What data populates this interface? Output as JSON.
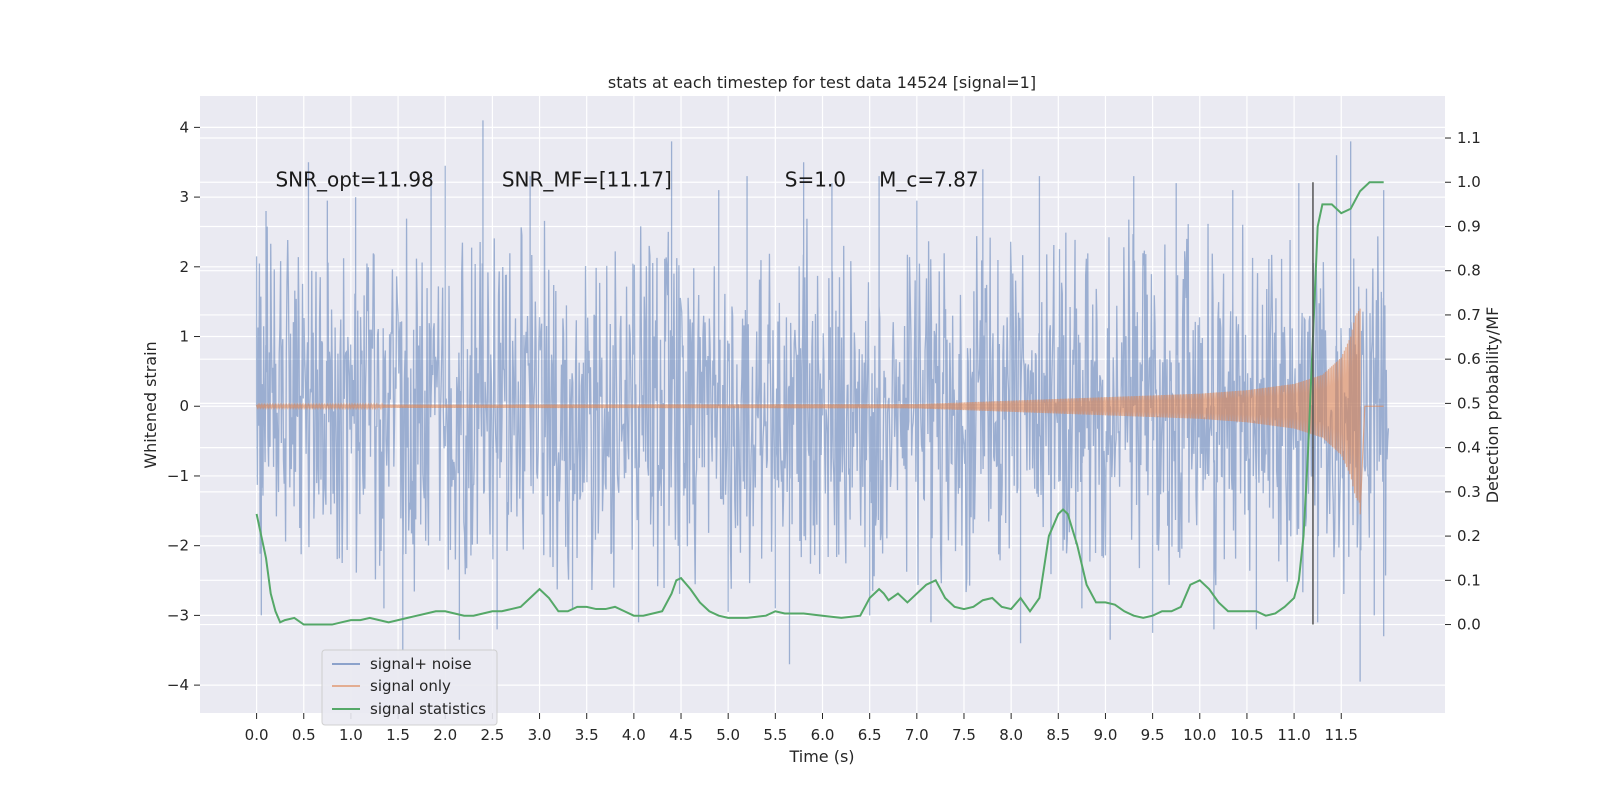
{
  "chart_data": {
    "type": "line",
    "title": "stats at each timestep for test data 14524 [signal=1]",
    "xlabel": "Time (s)",
    "ylabel": "Whitened strain",
    "ylabel_right": "Detection probability/MF",
    "xlim": [
      -0.6,
      12.6
    ],
    "ylim": [
      -4.4,
      4.45
    ],
    "ylim_right": [
      -0.2,
      1.195
    ],
    "x_ticks": [
      0.0,
      0.5,
      1.0,
      1.5,
      2.0,
      2.5,
      3.0,
      3.5,
      4.0,
      4.5,
      5.0,
      5.5,
      6.0,
      6.5,
      7.0,
      7.5,
      8.0,
      8.5,
      9.0,
      9.5,
      10.0,
      10.5,
      11.0,
      11.5
    ],
    "x_tick_labels": [
      "0.0",
      "0.5",
      "1.0",
      "1.5",
      "2.0",
      "2.5",
      "3.0",
      "3.5",
      "4.0",
      "4.5",
      "5.0",
      "5.5",
      "6.0",
      "6.5",
      "7.0",
      "7.5",
      "8.0",
      "8.5",
      "9.0",
      "9.5",
      "10.0",
      "10.5",
      "11.0",
      "11.5"
    ],
    "y_ticks": [
      -4,
      -3,
      -2,
      -1,
      0,
      1,
      2,
      3,
      4
    ],
    "y_tick_labels": [
      "−4",
      "−3",
      "−2",
      "−1",
      "0",
      "1",
      "2",
      "3",
      "4"
    ],
    "y_right_ticks": [
      0.0,
      0.1,
      0.2,
      0.3,
      0.4,
      0.5,
      0.6,
      0.7,
      0.8,
      0.9,
      1.0,
      1.1
    ],
    "y_right_tick_labels": [
      "0.0",
      "0.1",
      "0.2",
      "0.3",
      "0.4",
      "0.5",
      "0.6",
      "0.7",
      "0.8",
      "0.9",
      "1.0",
      "1.1"
    ],
    "grid": true,
    "legend_position": "lower-left",
    "annotations": [
      {
        "text": "SNR_opt=11.98",
        "x": 0.2,
        "y": 3.25
      },
      {
        "text": "SNR_MF=[11.17]",
        "x": 2.6,
        "y": 3.25
      },
      {
        "text": "S=1.0",
        "x": 5.6,
        "y": 3.25
      },
      {
        "text": "M_c=7.87",
        "x": 6.6,
        "y": 3.25
      }
    ],
    "vertical_line": {
      "x": 11.2,
      "y_range_right": [
        0.0,
        1.0
      ]
    },
    "series": [
      {
        "name": "signal+ noise",
        "axis": "left",
        "color": "#4c72b0",
        "kind": "noise",
        "x_range": [
          0.0,
          12.0
        ],
        "typical_range": [
          -1.3,
          1.3
        ],
        "peaks": [
          [
            0.0,
            2.15
          ],
          [
            0.05,
            -3.0
          ],
          [
            0.1,
            2.8
          ],
          [
            0.55,
            3.5
          ],
          [
            0.75,
            2.95
          ],
          [
            1.05,
            3.0
          ],
          [
            1.35,
            -2.9
          ],
          [
            1.55,
            -3.5
          ],
          [
            1.85,
            3.3
          ],
          [
            2.0,
            3.45
          ],
          [
            2.15,
            -3.35
          ],
          [
            2.4,
            4.1
          ],
          [
            2.55,
            -3.2
          ],
          [
            2.9,
            3.3
          ],
          [
            3.35,
            -2.9
          ],
          [
            4.05,
            -3.1
          ],
          [
            4.4,
            3.8
          ],
          [
            4.9,
            3.1
          ],
          [
            5.0,
            -2.95
          ],
          [
            5.2,
            3.3
          ],
          [
            5.5,
            -2.9
          ],
          [
            5.65,
            -3.7
          ],
          [
            5.8,
            3.5
          ],
          [
            6.1,
            3.2
          ],
          [
            6.5,
            -3.0
          ],
          [
            6.6,
            3.3
          ],
          [
            7.0,
            2.95
          ],
          [
            7.15,
            -3.1
          ],
          [
            7.7,
            3.4
          ],
          [
            8.1,
            -3.4
          ],
          [
            8.3,
            3.3
          ],
          [
            8.75,
            -2.9
          ],
          [
            9.05,
            -3.35
          ],
          [
            9.3,
            3.3
          ],
          [
            9.5,
            -3.25
          ],
          [
            9.75,
            3.2
          ],
          [
            10.15,
            -3.2
          ],
          [
            10.35,
            3.1
          ],
          [
            10.6,
            -3.2
          ],
          [
            11.05,
            3.2
          ],
          [
            11.25,
            -3.1
          ],
          [
            11.45,
            3.6
          ],
          [
            11.6,
            3.8
          ],
          [
            11.7,
            -3.95
          ],
          [
            11.85,
            -3.0
          ],
          [
            11.95,
            3.1
          ],
          [
            11.95,
            -3.3
          ]
        ]
      },
      {
        "name": "signal only",
        "axis": "left",
        "color": "#dd8452",
        "kind": "chirp",
        "x_range": [
          0.0,
          11.7
        ],
        "envelope": [
          [
            0.0,
            0.02
          ],
          [
            7.0,
            0.03
          ],
          [
            8.0,
            0.08
          ],
          [
            9.0,
            0.13
          ],
          [
            10.0,
            0.18
          ],
          [
            10.5,
            0.23
          ],
          [
            11.0,
            0.32
          ],
          [
            11.3,
            0.45
          ],
          [
            11.5,
            0.7
          ],
          [
            11.6,
            1.0
          ],
          [
            11.65,
            1.3
          ],
          [
            11.7,
            1.4
          ]
        ],
        "tail_min": -1.55
      },
      {
        "name": "signal statistics",
        "axis": "right",
        "color": "#55a868",
        "kind": "line",
        "x": [
          0.0,
          0.1,
          0.15,
          0.2,
          0.25,
          0.3,
          0.4,
          0.5,
          0.6,
          0.7,
          0.8,
          0.9,
          1.0,
          1.1,
          1.2,
          1.3,
          1.4,
          1.5,
          1.6,
          1.7,
          1.8,
          1.9,
          2.0,
          2.1,
          2.2,
          2.3,
          2.4,
          2.5,
          2.6,
          2.7,
          2.8,
          2.9,
          3.0,
          3.1,
          3.2,
          3.3,
          3.4,
          3.5,
          3.6,
          3.7,
          3.8,
          3.9,
          4.0,
          4.1,
          4.2,
          4.3,
          4.4,
          4.45,
          4.5,
          4.6,
          4.7,
          4.8,
          4.9,
          5.0,
          5.2,
          5.4,
          5.5,
          5.6,
          5.8,
          6.0,
          6.2,
          6.4,
          6.5,
          6.6,
          6.65,
          6.7,
          6.8,
          6.9,
          7.0,
          7.1,
          7.2,
          7.3,
          7.4,
          7.5,
          7.6,
          7.7,
          7.8,
          7.9,
          8.0,
          8.1,
          8.2,
          8.3,
          8.4,
          8.5,
          8.55,
          8.6,
          8.7,
          8.8,
          8.9,
          9.0,
          9.1,
          9.2,
          9.3,
          9.4,
          9.5,
          9.6,
          9.7,
          9.8,
          9.9,
          10.0,
          10.1,
          10.2,
          10.3,
          10.4,
          10.5,
          10.6,
          10.7,
          10.8,
          10.9,
          11.0,
          11.05,
          11.1,
          11.15,
          11.2,
          11.25,
          11.3,
          11.35,
          11.4,
          11.5,
          11.6,
          11.7,
          11.8,
          11.9,
          11.95
        ],
        "y": [
          0.25,
          0.15,
          0.07,
          0.03,
          0.005,
          0.01,
          0.015,
          0.0,
          0.0,
          0.0,
          0.0,
          0.005,
          0.01,
          0.01,
          0.015,
          0.01,
          0.005,
          0.01,
          0.015,
          0.02,
          0.025,
          0.03,
          0.03,
          0.025,
          0.02,
          0.02,
          0.025,
          0.03,
          0.03,
          0.035,
          0.04,
          0.06,
          0.08,
          0.06,
          0.03,
          0.03,
          0.04,
          0.04,
          0.035,
          0.035,
          0.04,
          0.03,
          0.02,
          0.02,
          0.025,
          0.03,
          0.07,
          0.1,
          0.105,
          0.08,
          0.05,
          0.03,
          0.02,
          0.015,
          0.015,
          0.02,
          0.03,
          0.025,
          0.025,
          0.02,
          0.015,
          0.02,
          0.06,
          0.08,
          0.07,
          0.055,
          0.07,
          0.05,
          0.07,
          0.09,
          0.1,
          0.06,
          0.04,
          0.035,
          0.04,
          0.055,
          0.06,
          0.04,
          0.035,
          0.06,
          0.03,
          0.06,
          0.2,
          0.25,
          0.26,
          0.25,
          0.18,
          0.09,
          0.05,
          0.05,
          0.045,
          0.03,
          0.02,
          0.015,
          0.02,
          0.03,
          0.03,
          0.04,
          0.09,
          0.1,
          0.08,
          0.05,
          0.03,
          0.03,
          0.03,
          0.03,
          0.02,
          0.025,
          0.04,
          0.06,
          0.1,
          0.2,
          0.4,
          0.65,
          0.9,
          0.95,
          0.95,
          0.95,
          0.93,
          0.94,
          0.98,
          1.0,
          1.0,
          1.0
        ]
      }
    ]
  }
}
